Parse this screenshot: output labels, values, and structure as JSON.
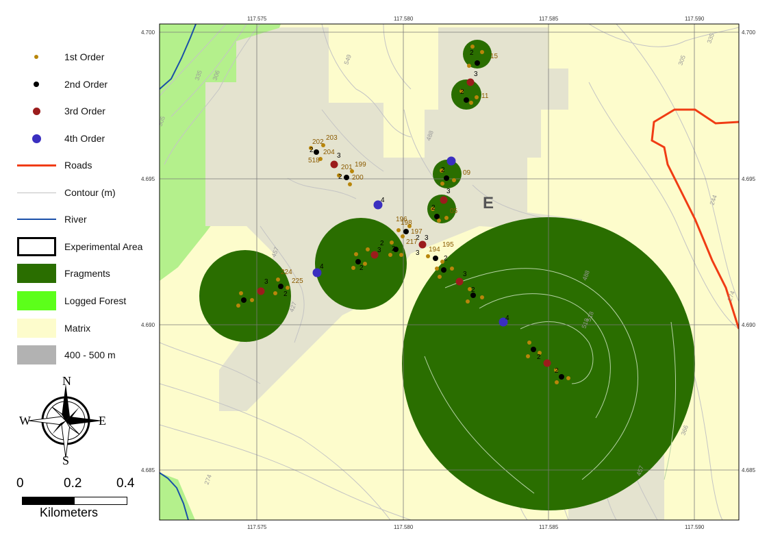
{
  "legend": {
    "items": [
      {
        "label": "1st Order",
        "symbol": "dot-small",
        "color": "#b8860b"
      },
      {
        "label": "2nd Order",
        "symbol": "dot-black",
        "color": "#000000"
      },
      {
        "label": "3rd Order",
        "symbol": "dot-medium",
        "color": "#9b1c1c"
      },
      {
        "label": "4th Order",
        "symbol": "dot-large",
        "color": "#3a2fc0"
      },
      {
        "label": "Roads",
        "symbol": "line-thick",
        "color": "#f03c14"
      },
      {
        "label": "Contour (m)",
        "symbol": "line-thin",
        "color": "#c0c0c0"
      },
      {
        "label": "River",
        "symbol": "line-river",
        "color": "#1a4fa8"
      },
      {
        "label": "Experimental Area",
        "symbol": "box-outline",
        "color": "#000000"
      },
      {
        "label": "Fragments",
        "symbol": "box-fill",
        "color": "#2a6e00"
      },
      {
        "label": "Logged Forest",
        "symbol": "box-fill",
        "color": "#5cff1a"
      },
      {
        "label": "Matrix",
        "symbol": "box-fill",
        "color": "#fdfccc"
      },
      {
        "label": "400 - 500 m",
        "symbol": "box-fill",
        "color": "#b2b2b2"
      }
    ]
  },
  "compass": {
    "n": "N",
    "s": "S",
    "e": "E",
    "w": "W"
  },
  "scalebar": {
    "ticks": [
      "0",
      "0.2",
      "0.4"
    ],
    "unit": "Kilometers"
  },
  "map": {
    "colors": {
      "matrix": "#fdfccc",
      "highland": "#e4e3cf",
      "fragment": "#2a6e00",
      "logged": "#b4f08c",
      "road": "#f03c14",
      "river": "#1a4fa8",
      "contour": "#c4c4c4",
      "grid": "#7a7a7a"
    },
    "lon_ticks": [
      "117.575",
      "117.580",
      "117.585",
      "117.590"
    ],
    "lat_ticks": [
      "4.700",
      "4.695",
      "4.690",
      "4.685"
    ],
    "area_label": "E",
    "contour_labels": [
      "335",
      "306",
      "305",
      "335",
      "305",
      "549",
      "488",
      "244",
      "274",
      "518",
      "457",
      "427",
      "488",
      "518",
      "366",
      "457",
      "274"
    ],
    "point_labels": [
      "2",
      "15",
      "3",
      "2",
      "11",
      "202",
      "203",
      "2",
      "204",
      "3",
      "518",
      "201",
      "199",
      "2",
      "200",
      "2",
      "09",
      "3",
      "2",
      "05",
      "4",
      "198",
      "197",
      "196",
      "2",
      "217",
      "3",
      "2",
      "3",
      "195",
      "194",
      "2",
      "3",
      "2",
      "4",
      "224",
      "225",
      "3",
      "2",
      "4",
      "2",
      "3",
      "2",
      "2",
      "2"
    ]
  }
}
